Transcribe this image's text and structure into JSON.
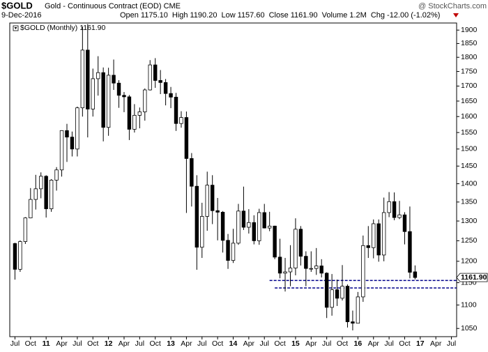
{
  "chart_data": {
    "type": "candlestick",
    "symbol": "$GOLD",
    "title": "Gold - Continuous Contract (EOD) CME",
    "date": "9-Dec-2016",
    "stats": [
      {
        "label": "Open",
        "value": "1175.10"
      },
      {
        "label": "High",
        "value": "1190.20"
      },
      {
        "label": "Low",
        "value": "1157.60"
      },
      {
        "label": "Close",
        "value": "1161.90"
      },
      {
        "label": "Volume",
        "value": "1.2M"
      },
      {
        "label": "Chg",
        "value": "-12.00 (-1.02%)"
      }
    ],
    "watermark": "@ StockCharts.com",
    "legend_text": "$GOLD (Monthly) 1161.90",
    "price_tag": "1161.90",
    "log_scale": true,
    "up_color": "#ffffff",
    "down_color": "#000000",
    "ylim": [
      1033,
      1927
    ],
    "yticks": [
      1050,
      1100,
      1150,
      1200,
      1250,
      1300,
      1350,
      1400,
      1450,
      1500,
      1550,
      1600,
      1650,
      1700,
      1750,
      1800,
      1850,
      1900
    ],
    "xlim": [
      "2010-06",
      "2017-08"
    ],
    "xticks": [
      {
        "value": "2010-07",
        "label": "Jul"
      },
      {
        "value": "2010-10",
        "label": "Oct"
      },
      {
        "value": "2011-01",
        "label": "11"
      },
      {
        "value": "2011-04",
        "label": "Apr"
      },
      {
        "value": "2011-07",
        "label": "Jul"
      },
      {
        "value": "2011-10",
        "label": "Oct"
      },
      {
        "value": "2012-01",
        "label": "12"
      },
      {
        "value": "2012-04",
        "label": "Apr"
      },
      {
        "value": "2012-07",
        "label": "Jul"
      },
      {
        "value": "2012-10",
        "label": "Oct"
      },
      {
        "value": "2013-01",
        "label": "13"
      },
      {
        "value": "2013-04",
        "label": "Apr"
      },
      {
        "value": "2013-07",
        "label": "Jul"
      },
      {
        "value": "2013-10",
        "label": "Oct"
      },
      {
        "value": "2014-01",
        "label": "14"
      },
      {
        "value": "2014-04",
        "label": "Apr"
      },
      {
        "value": "2014-07",
        "label": "Jul"
      },
      {
        "value": "2014-10",
        "label": "Oct"
      },
      {
        "value": "2015-01",
        "label": "15"
      },
      {
        "value": "2015-04",
        "label": "Apr"
      },
      {
        "value": "2015-07",
        "label": "Jul"
      },
      {
        "value": "2015-10",
        "label": "Oct"
      },
      {
        "value": "2016-01",
        "label": "16"
      },
      {
        "value": "2016-04",
        "label": "Apr"
      },
      {
        "value": "2016-07",
        "label": "Jul"
      },
      {
        "value": "2016-10",
        "label": "Oct"
      },
      {
        "value": "2017-01",
        "label": "17"
      },
      {
        "value": "2017-04",
        "label": "Apr"
      },
      {
        "value": "2017-07",
        "label": "Jul"
      }
    ],
    "reference_lines": [
      {
        "value": 1155,
        "from": "2014-08",
        "color": "#00008b"
      },
      {
        "value": 1138,
        "from": "2014-09",
        "color": "#00008b"
      }
    ],
    "x": [
      "2010-07",
      "2010-08",
      "2010-09",
      "2010-10",
      "2010-11",
      "2010-12",
      "2011-01",
      "2011-02",
      "2011-03",
      "2011-04",
      "2011-05",
      "2011-06",
      "2011-07",
      "2011-08",
      "2011-09",
      "2011-10",
      "2011-11",
      "2011-12",
      "2012-01",
      "2012-02",
      "2012-03",
      "2012-04",
      "2012-05",
      "2012-06",
      "2012-07",
      "2012-08",
      "2012-09",
      "2012-10",
      "2012-11",
      "2012-12",
      "2013-01",
      "2013-02",
      "2013-03",
      "2013-04",
      "2013-05",
      "2013-06",
      "2013-07",
      "2013-08",
      "2013-09",
      "2013-10",
      "2013-11",
      "2013-12",
      "2014-01",
      "2014-02",
      "2014-03",
      "2014-04",
      "2014-05",
      "2014-06",
      "2014-07",
      "2014-08",
      "2014-09",
      "2014-10",
      "2014-11",
      "2014-12",
      "2015-01",
      "2015-02",
      "2015-03",
      "2015-04",
      "2015-05",
      "2015-06",
      "2015-07",
      "2015-08",
      "2015-09",
      "2015-10",
      "2015-11",
      "2015-12",
      "2016-01",
      "2016-02",
      "2016-03",
      "2016-04",
      "2016-05",
      "2016-06",
      "2016-07",
      "2016-08",
      "2016-09",
      "2016-10",
      "2016-11",
      "2016-12"
    ],
    "open": [
      1243,
      1181,
      1248,
      1308,
      1357,
      1386,
      1421,
      1332,
      1410,
      1439,
      1556,
      1536,
      1500,
      1628,
      1826,
      1624,
      1725,
      1746,
      1566,
      1737,
      1710,
      1669,
      1664,
      1560,
      1604,
      1615,
      1687,
      1773,
      1719,
      1712,
      1675,
      1663,
      1578,
      1597,
      1472,
      1393,
      1234,
      1312,
      1396,
      1327,
      1323,
      1251,
      1202,
      1244,
      1326,
      1284,
      1296,
      1250,
      1322,
      1282,
      1287,
      1210,
      1172,
      1175,
      1184,
      1279,
      1212,
      1183,
      1183,
      1189,
      1172,
      1095,
      1134,
      1115,
      1142,
      1064,
      1061,
      1118,
      1238,
      1233,
      1293,
      1215,
      1322,
      1351,
      1309,
      1316,
      1273,
      1175.1
    ],
    "high": [
      1245,
      1251,
      1310,
      1388,
      1425,
      1432,
      1424,
      1413,
      1447,
      1557,
      1577,
      1553,
      1632,
      1913,
      1923,
      1760,
      1804,
      1764,
      1763,
      1792,
      1720,
      1680,
      1670,
      1640,
      1629,
      1692,
      1790,
      1797,
      1755,
      1724,
      1697,
      1677,
      1617,
      1616,
      1488,
      1424,
      1348,
      1434,
      1424,
      1361,
      1326,
      1267,
      1280,
      1345,
      1392,
      1331,
      1315,
      1332,
      1345,
      1324,
      1288,
      1255,
      1208,
      1239,
      1307,
      1287,
      1224,
      1224,
      1232,
      1205,
      1174,
      1170,
      1157,
      1191,
      1146,
      1088,
      1129,
      1263,
      1287,
      1304,
      1304,
      1362,
      1377,
      1376,
      1353,
      1323,
      1338,
      1190.2
    ],
    "low": [
      1157,
      1175,
      1242,
      1307,
      1330,
      1360,
      1309,
      1324,
      1381,
      1420,
      1462,
      1478,
      1478,
      1600,
      1535,
      1600,
      1668,
      1523,
      1540,
      1687,
      1628,
      1614,
      1527,
      1550,
      1563,
      1587,
      1685,
      1694,
      1673,
      1636,
      1627,
      1555,
      1565,
      1321,
      1338,
      1180,
      1208,
      1275,
      1292,
      1251,
      1221,
      1182,
      1196,
      1240,
      1277,
      1268,
      1241,
      1240,
      1281,
      1274,
      1205,
      1160,
      1130,
      1142,
      1167,
      1190,
      1142,
      1175,
      1168,
      1162,
      1072,
      1077,
      1098,
      1110,
      1052,
      1046,
      1061,
      1107,
      1208,
      1207,
      1199,
      1200,
      1310,
      1302,
      1305,
      1241,
      1160,
      1157.6
    ],
    "close": [
      1181,
      1248,
      1308,
      1357,
      1386,
      1421,
      1332,
      1410,
      1439,
      1556,
      1536,
      1500,
      1628,
      1826,
      1624,
      1725,
      1746,
      1566,
      1737,
      1710,
      1669,
      1664,
      1560,
      1604,
      1615,
      1687,
      1773,
      1719,
      1712,
      1675,
      1663,
      1578,
      1597,
      1472,
      1393,
      1234,
      1312,
      1396,
      1327,
      1323,
      1251,
      1202,
      1244,
      1326,
      1284,
      1296,
      1250,
      1322,
      1282,
      1287,
      1210,
      1172,
      1175,
      1184,
      1279,
      1212,
      1183,
      1183,
      1189,
      1172,
      1095,
      1134,
      1115,
      1142,
      1064,
      1061,
      1118,
      1238,
      1233,
      1293,
      1215,
      1322,
      1351,
      1309,
      1316,
      1273,
      1174,
      1161.9
    ]
  }
}
